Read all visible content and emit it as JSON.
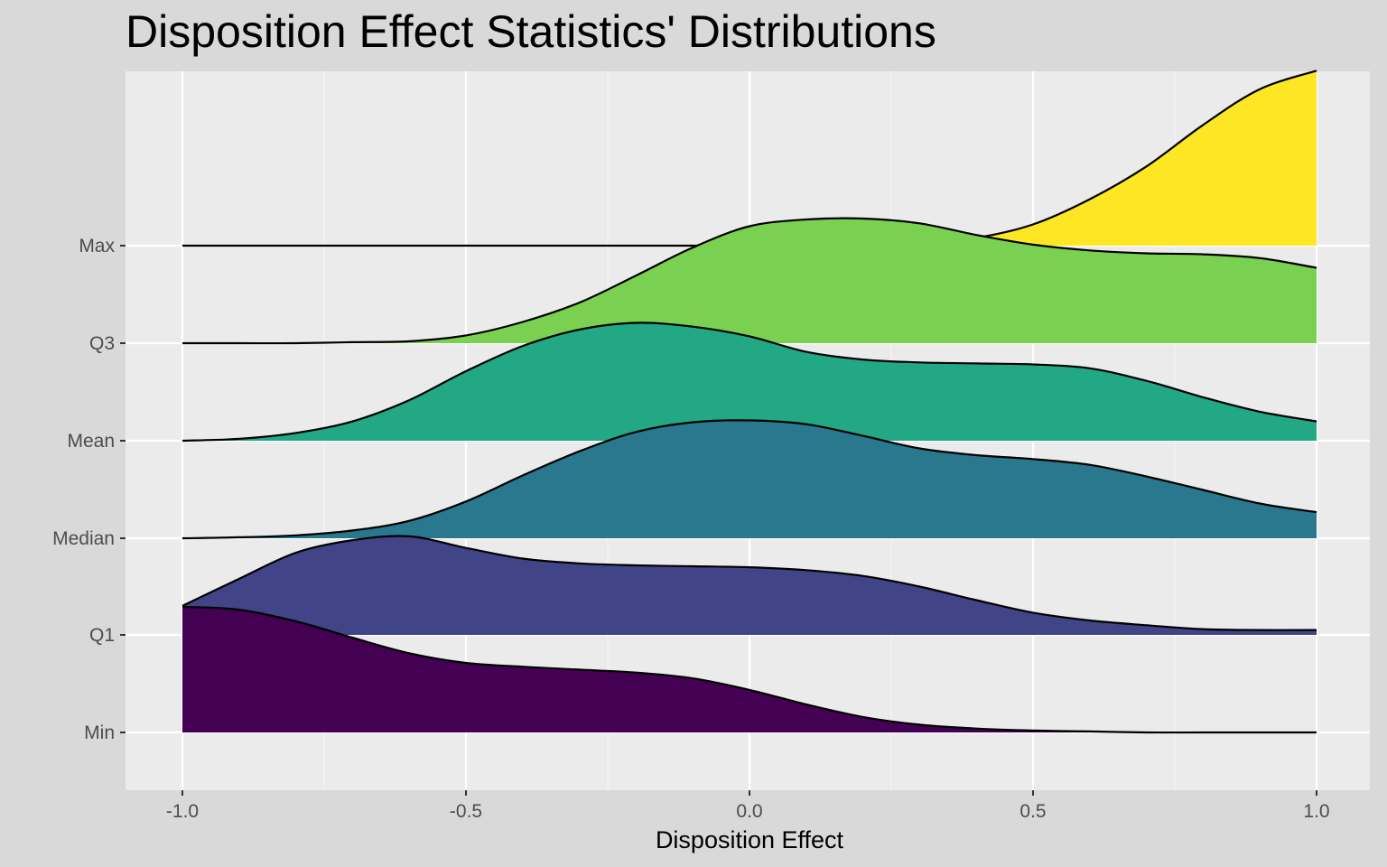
{
  "chart_data": {
    "type": "ridgeline",
    "title": "Disposition Effect Statistics' Distributions",
    "xlabel": "Disposition Effect",
    "ylabel": "",
    "xlim": [
      -1.1,
      1.1
    ],
    "x_ticks": [
      "-1.0",
      "-0.5",
      "0.0",
      "0.5",
      "1.0"
    ],
    "x_tick_values": [
      -1.0,
      -0.5,
      0.0,
      0.5,
      1.0
    ],
    "categories": [
      "Min",
      "Q1",
      "Median",
      "Mean",
      "Q3",
      "Max"
    ],
    "grid": true,
    "legend": "none",
    "x": [
      -1.0,
      -0.9,
      -0.8,
      -0.7,
      -0.6,
      -0.5,
      -0.4,
      -0.3,
      -0.2,
      -0.1,
      0.0,
      0.1,
      0.2,
      0.3,
      0.4,
      0.5,
      0.6,
      0.7,
      0.8,
      0.9,
      1.0
    ],
    "series": [
      {
        "name": "Min",
        "color": "#440154",
        "values": [
          1.3,
          1.27,
          1.15,
          0.98,
          0.82,
          0.72,
          0.68,
          0.65,
          0.62,
          0.56,
          0.44,
          0.29,
          0.16,
          0.08,
          0.04,
          0.02,
          0.01,
          0.0,
          0.0,
          0.0,
          0.0
        ]
      },
      {
        "name": "Q1",
        "color": "#414487",
        "values": [
          0.3,
          0.58,
          0.85,
          0.98,
          1.02,
          0.9,
          0.79,
          0.74,
          0.72,
          0.71,
          0.7,
          0.67,
          0.61,
          0.5,
          0.36,
          0.23,
          0.15,
          0.1,
          0.06,
          0.05,
          0.05
        ]
      },
      {
        "name": "Median",
        "color": "#2A788E",
        "values": [
          0.0,
          0.01,
          0.03,
          0.08,
          0.18,
          0.38,
          0.65,
          0.9,
          1.1,
          1.2,
          1.22,
          1.18,
          1.06,
          0.93,
          0.86,
          0.82,
          0.76,
          0.64,
          0.5,
          0.36,
          0.27
        ]
      },
      {
        "name": "Mean",
        "color": "#22A884",
        "values": [
          0.0,
          0.02,
          0.08,
          0.2,
          0.42,
          0.72,
          0.98,
          1.15,
          1.22,
          1.18,
          1.08,
          0.92,
          0.84,
          0.81,
          0.8,
          0.79,
          0.75,
          0.62,
          0.45,
          0.3,
          0.2
        ]
      },
      {
        "name": "Q3",
        "color": "#7AD151",
        "values": [
          0.0,
          0.0,
          0.0,
          0.01,
          0.02,
          0.08,
          0.22,
          0.42,
          0.7,
          0.99,
          1.21,
          1.28,
          1.29,
          1.24,
          1.12,
          1.02,
          0.96,
          0.93,
          0.92,
          0.88,
          0.78
        ]
      },
      {
        "name": "Max",
        "color": "#FDE725",
        "values": [
          0.0,
          0.0,
          0.0,
          0.0,
          0.0,
          0.0,
          0.0,
          0.0,
          0.0,
          0.0,
          0.0,
          0.0,
          0.0,
          0.02,
          0.08,
          0.22,
          0.48,
          0.82,
          1.25,
          1.62,
          1.81
        ]
      }
    ]
  }
}
